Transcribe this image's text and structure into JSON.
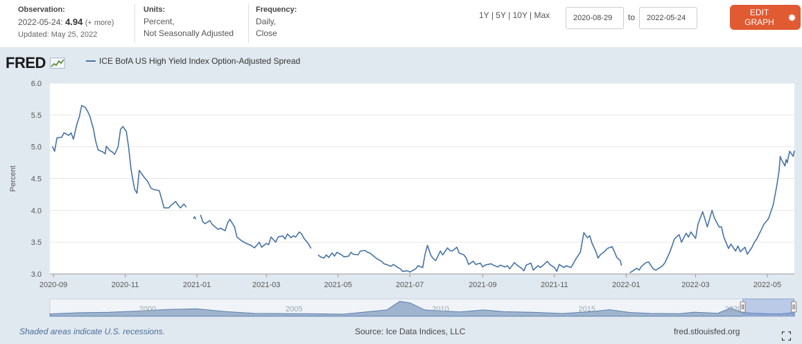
{
  "header": {
    "observation_label": "Observation:",
    "observation_date": "2022-05-24:",
    "observation_value": "4.94",
    "observation_more": "(+ more)",
    "updated": "Updated: May 25, 2022",
    "units_label": "Units:",
    "units_line1": "Percent,",
    "units_line2": "Not Seasonally Adjusted",
    "frequency_label": "Frequency:",
    "frequency_line1": "Daily,",
    "frequency_line2": "Close",
    "ranges": [
      "1Y",
      "5Y",
      "10Y",
      "Max"
    ],
    "range_sep": "|",
    "start_date": "2020-08-29",
    "to_label": "to",
    "end_date": "2022-05-24",
    "edit_button": "EDIT GRAPH"
  },
  "colors": {
    "accent": "#e05a32",
    "series": "#4572a7",
    "chart_bg": "#e1e9f0",
    "plot_bg": "#ffffff",
    "navigator_fill": "#9fb4cf",
    "recession": "#c8d4e4"
  },
  "logo": {
    "text": "FRED"
  },
  "footer": {
    "recession_note": "Shaded areas indicate U.S. recessions.",
    "source": "Source: Ice Data Indices, LLC",
    "site": "fred.stlouisfed.org"
  },
  "chart_data": {
    "type": "line",
    "title": "",
    "series": [
      {
        "name": "ICE BofA US High Yield Index Option-Adjusted Spread",
        "points": [
          [
            "2020-08-31",
            5.01
          ],
          [
            "2020-09-02",
            4.93
          ],
          [
            "2020-09-04",
            5.14
          ],
          [
            "2020-09-08",
            5.15
          ],
          [
            "2020-09-10",
            5.22
          ],
          [
            "2020-09-14",
            5.18
          ],
          [
            "2020-09-16",
            5.22
          ],
          [
            "2020-09-18",
            5.12
          ],
          [
            "2020-09-21",
            5.36
          ],
          [
            "2020-09-23",
            5.47
          ],
          [
            "2020-09-25",
            5.65
          ],
          [
            "2020-09-28",
            5.62
          ],
          [
            "2020-09-30",
            5.56
          ],
          [
            "2020-10-02",
            5.48
          ],
          [
            "2020-10-05",
            5.28
          ],
          [
            "2020-10-07",
            5.08
          ],
          [
            "2020-10-09",
            4.95
          ],
          [
            "2020-10-13",
            4.92
          ],
          [
            "2020-10-15",
            4.89
          ],
          [
            "2020-10-16",
            5.01
          ],
          [
            "2020-10-19",
            4.94
          ],
          [
            "2020-10-21",
            4.92
          ],
          [
            "2020-10-23",
            4.88
          ],
          [
            "2020-10-26",
            5.0
          ],
          [
            "2020-10-28",
            5.27
          ],
          [
            "2020-10-30",
            5.32
          ],
          [
            "2020-11-02",
            5.24
          ],
          [
            "2020-11-04",
            4.98
          ],
          [
            "2020-11-06",
            4.64
          ],
          [
            "2020-11-09",
            4.33
          ],
          [
            "2020-11-11",
            4.27
          ],
          [
            "2020-11-13",
            4.63
          ],
          [
            "2020-11-16",
            4.55
          ],
          [
            "2020-11-18",
            4.5
          ],
          [
            "2020-11-20",
            4.46
          ],
          [
            "2020-11-23",
            4.35
          ],
          [
            "2020-11-25",
            4.33
          ],
          [
            "2020-11-30",
            4.31
          ],
          [
            "2020-12-02",
            4.18
          ],
          [
            "2020-12-04",
            4.04
          ],
          [
            "2020-12-08",
            4.04
          ],
          [
            "2020-12-10",
            4.08
          ],
          [
            "2020-12-14",
            4.14
          ],
          [
            "2020-12-16",
            4.08
          ],
          [
            "2020-12-18",
            4.04
          ],
          [
            "2020-12-21",
            4.1
          ],
          [
            "2020-12-23",
            4.05
          ],
          [
            null,
            null
          ],
          [
            "2020-12-29",
            3.87
          ],
          [
            "2020-12-30",
            3.9
          ],
          [
            "2020-12-31",
            3.86
          ],
          [
            null,
            null
          ],
          [
            "2021-01-04",
            3.93
          ],
          [
            "2021-01-06",
            3.82
          ],
          [
            "2021-01-08",
            3.79
          ],
          [
            "2021-01-12",
            3.84
          ],
          [
            "2021-01-14",
            3.78
          ],
          [
            "2021-01-19",
            3.7
          ],
          [
            "2021-01-21",
            3.72
          ],
          [
            "2021-01-25",
            3.68
          ],
          [
            "2021-01-27",
            3.8
          ],
          [
            "2021-01-29",
            3.86
          ],
          [
            "2021-02-02",
            3.74
          ],
          [
            "2021-02-04",
            3.58
          ],
          [
            "2021-02-08",
            3.52
          ],
          [
            "2021-02-12",
            3.48
          ],
          [
            "2021-02-16",
            3.45
          ],
          [
            "2021-02-19",
            3.41
          ],
          [
            "2021-02-23",
            3.5
          ],
          [
            "2021-02-25",
            3.42
          ],
          [
            "2021-03-01",
            3.48
          ],
          [
            "2021-03-03",
            3.46
          ],
          [
            "2021-03-05",
            3.58
          ],
          [
            "2021-03-09",
            3.5
          ],
          [
            "2021-03-11",
            3.58
          ],
          [
            "2021-03-15",
            3.6
          ],
          [
            "2021-03-17",
            3.55
          ],
          [
            "2021-03-19",
            3.63
          ],
          [
            "2021-03-22",
            3.57
          ],
          [
            "2021-03-24",
            3.6
          ],
          [
            "2021-03-26",
            3.58
          ],
          [
            "2021-03-29",
            3.66
          ],
          [
            "2021-03-31",
            3.63
          ],
          [
            "2021-04-02",
            3.56
          ],
          [
            "2021-04-06",
            3.47
          ],
          [
            "2021-04-08",
            3.4
          ],
          [
            null,
            null
          ],
          [
            "2021-04-14",
            3.3
          ],
          [
            "2021-04-16",
            3.27
          ],
          [
            "2021-04-19",
            3.25
          ],
          [
            "2021-04-21",
            3.3
          ],
          [
            "2021-04-23",
            3.26
          ],
          [
            "2021-04-26",
            3.33
          ],
          [
            "2021-04-28",
            3.28
          ],
          [
            "2021-04-30",
            3.34
          ],
          [
            "2021-05-04",
            3.3
          ],
          [
            "2021-05-06",
            3.27
          ],
          [
            "2021-05-10",
            3.28
          ],
          [
            "2021-05-12",
            3.34
          ],
          [
            "2021-05-14",
            3.31
          ],
          [
            "2021-05-18",
            3.3
          ],
          [
            "2021-05-20",
            3.36
          ],
          [
            "2021-05-24",
            3.37
          ],
          [
            "2021-05-26",
            3.34
          ],
          [
            "2021-05-28",
            3.33
          ],
          [
            "2021-06-01",
            3.27
          ],
          [
            "2021-06-03",
            3.24
          ],
          [
            "2021-06-07",
            3.2
          ],
          [
            "2021-06-09",
            3.16
          ],
          [
            "2021-06-11",
            3.15
          ],
          [
            "2021-06-15",
            3.12
          ],
          [
            "2021-06-17",
            3.15
          ],
          [
            "2021-06-21",
            3.1
          ],
          [
            "2021-06-23",
            3.08
          ],
          [
            "2021-06-25",
            3.04
          ],
          [
            "2021-06-29",
            3.05
          ],
          [
            "2021-07-01",
            3.03
          ],
          [
            "2021-07-06",
            3.08
          ],
          [
            "2021-07-08",
            3.13
          ],
          [
            "2021-07-12",
            3.1
          ],
          [
            "2021-07-14",
            3.31
          ],
          [
            "2021-07-16",
            3.45
          ],
          [
            "2021-07-19",
            3.29
          ],
          [
            "2021-07-21",
            3.24
          ],
          [
            "2021-07-23",
            3.21
          ],
          [
            "2021-07-27",
            3.36
          ],
          [
            "2021-07-29",
            3.3
          ],
          [
            "2021-08-02",
            3.41
          ],
          [
            "2021-08-04",
            3.37
          ],
          [
            "2021-08-06",
            3.36
          ],
          [
            "2021-08-10",
            3.42
          ],
          [
            "2021-08-12",
            3.33
          ],
          [
            "2021-08-16",
            3.3
          ],
          [
            "2021-08-18",
            3.25
          ],
          [
            "2021-08-20",
            3.15
          ],
          [
            "2021-08-24",
            3.2
          ],
          [
            "2021-08-26",
            3.15
          ],
          [
            "2021-08-30",
            3.17
          ],
          [
            "2021-09-01",
            3.11
          ],
          [
            "2021-09-03",
            3.14
          ],
          [
            "2021-09-08",
            3.16
          ],
          [
            "2021-09-10",
            3.14
          ],
          [
            "2021-09-14",
            3.11
          ],
          [
            "2021-09-16",
            3.14
          ],
          [
            "2021-09-20",
            3.11
          ],
          [
            "2021-09-22",
            3.13
          ],
          [
            "2021-09-24",
            3.08
          ],
          [
            "2021-09-28",
            3.18
          ],
          [
            "2021-09-30",
            3.14
          ],
          [
            "2021-10-04",
            3.09
          ],
          [
            "2021-10-06",
            3.05
          ],
          [
            "2021-10-08",
            3.14
          ],
          [
            "2021-10-12",
            3.17
          ],
          [
            "2021-10-14",
            3.06
          ],
          [
            "2021-10-18",
            3.13
          ],
          [
            "2021-10-20",
            3.1
          ],
          [
            "2021-10-22",
            3.13
          ],
          [
            "2021-10-26",
            3.2
          ],
          [
            "2021-10-28",
            3.15
          ],
          [
            "2021-11-01",
            3.1
          ],
          [
            "2021-11-03",
            3.04
          ],
          [
            "2021-11-05",
            3.15
          ],
          [
            "2021-11-09",
            3.1
          ],
          [
            "2021-11-11",
            3.13
          ],
          [
            "2021-11-15",
            3.1
          ],
          [
            "2021-11-17",
            3.16
          ],
          [
            "2021-11-19",
            3.23
          ],
          [
            "2021-11-23",
            3.34
          ],
          [
            "2021-11-26",
            3.65
          ],
          [
            "2021-11-29",
            3.57
          ],
          [
            "2021-12-01",
            3.6
          ],
          [
            "2021-12-03",
            3.48
          ],
          [
            "2021-12-06",
            3.36
          ],
          [
            "2021-12-08",
            3.25
          ],
          [
            "2021-12-10",
            3.3
          ],
          [
            "2021-12-14",
            3.36
          ],
          [
            "2021-12-16",
            3.4
          ],
          [
            "2021-12-20",
            3.43
          ],
          [
            "2021-12-22",
            3.35
          ],
          [
            "2021-12-24",
            3.26
          ],
          [
            "2021-12-27",
            3.21
          ],
          [
            "2021-12-28",
            3.13
          ],
          [
            null,
            null
          ],
          [
            "2022-01-04",
            3.02
          ],
          [
            "2022-01-06",
            3.04
          ],
          [
            "2022-01-10",
            3.09
          ],
          [
            "2022-01-12",
            3.06
          ],
          [
            "2022-01-14",
            3.12
          ],
          [
            "2022-01-18",
            3.18
          ],
          [
            "2022-01-20",
            3.19
          ],
          [
            "2022-01-24",
            3.08
          ],
          [
            "2022-01-26",
            3.06
          ],
          [
            "2022-01-28",
            3.08
          ],
          [
            "2022-02-01",
            3.13
          ],
          [
            "2022-02-03",
            3.18
          ],
          [
            "2022-02-07",
            3.34
          ],
          [
            "2022-02-09",
            3.44
          ],
          [
            "2022-02-11",
            3.55
          ],
          [
            "2022-02-15",
            3.62
          ],
          [
            "2022-02-17",
            3.5
          ],
          [
            "2022-02-21",
            3.64
          ],
          [
            "2022-02-23",
            3.58
          ],
          [
            "2022-02-25",
            3.66
          ],
          [
            "2022-03-01",
            3.56
          ],
          [
            "2022-03-03",
            3.78
          ],
          [
            "2022-03-07",
            3.98
          ],
          [
            "2022-03-09",
            3.86
          ],
          [
            "2022-03-11",
            3.74
          ],
          [
            "2022-03-15",
            4.0
          ],
          [
            "2022-03-17",
            3.88
          ],
          [
            "2022-03-21",
            3.74
          ],
          [
            "2022-03-23",
            3.74
          ],
          [
            "2022-03-25",
            3.58
          ],
          [
            "2022-03-29",
            3.4
          ],
          [
            "2022-03-31",
            3.47
          ],
          [
            "2022-04-04",
            3.36
          ],
          [
            "2022-04-06",
            3.44
          ],
          [
            "2022-04-08",
            3.35
          ],
          [
            "2022-04-12",
            3.42
          ],
          [
            "2022-04-14",
            3.31
          ],
          [
            "2022-04-18",
            3.42
          ],
          [
            "2022-04-20",
            3.5
          ],
          [
            "2022-04-22",
            3.55
          ],
          [
            "2022-04-26",
            3.7
          ],
          [
            "2022-04-28",
            3.78
          ],
          [
            "2022-05-02",
            3.87
          ],
          [
            "2022-05-04",
            3.98
          ],
          [
            "2022-05-06",
            4.09
          ],
          [
            "2022-05-09",
            4.38
          ],
          [
            "2022-05-11",
            4.62
          ],
          [
            "2022-05-12",
            4.85
          ],
          [
            "2022-05-13",
            4.8
          ],
          [
            "2022-05-16",
            4.7
          ],
          [
            "2022-05-17",
            4.8
          ],
          [
            "2022-05-18",
            4.75
          ],
          [
            "2022-05-19",
            4.85
          ],
          [
            "2022-05-20",
            4.93
          ],
          [
            "2022-05-23",
            4.85
          ],
          [
            "2022-05-24",
            4.94
          ]
        ]
      }
    ],
    "xlabel": "",
    "ylabel": "Percent",
    "xlim": [
      "2020-08-29",
      "2022-05-24"
    ],
    "ylim": [
      3.0,
      6.0
    ],
    "yticks": [
      "3.0",
      "3.5",
      "4.0",
      "4.5",
      "5.0",
      "5.5",
      "6.0"
    ],
    "xticks": [
      {
        "date": "2020-09-01",
        "label": "2020-09"
      },
      {
        "date": "2020-11-01",
        "label": "2020-11"
      },
      {
        "date": "2021-01-01",
        "label": "2021-01"
      },
      {
        "date": "2021-03-01",
        "label": "2021-03"
      },
      {
        "date": "2021-05-01",
        "label": "2021-05"
      },
      {
        "date": "2021-07-01",
        "label": "2021-07"
      },
      {
        "date": "2021-09-01",
        "label": "2021-09"
      },
      {
        "date": "2021-11-01",
        "label": "2021-11"
      },
      {
        "date": "2022-01-01",
        "label": "2022-01"
      },
      {
        "date": "2022-03-01",
        "label": "2022-03"
      },
      {
        "date": "2022-05-01",
        "label": "2022-05"
      }
    ],
    "grid": true,
    "legend": "top-left",
    "navigator": {
      "year_range": [
        1997,
        2022.42
      ],
      "year_labels": [
        "2000",
        "2005",
        "2010",
        "2015",
        "2020"
      ],
      "selected_range": [
        2020.66,
        2022.4
      ]
    }
  }
}
